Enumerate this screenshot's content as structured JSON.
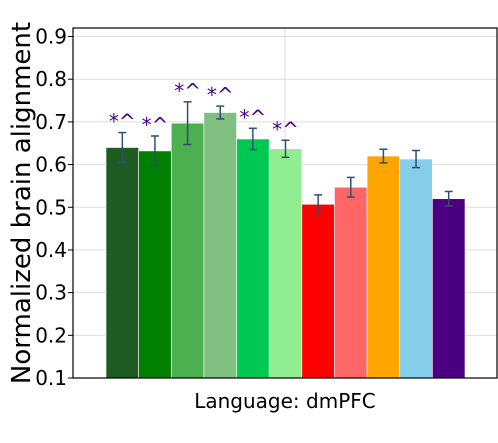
{
  "chart_data": {
    "type": "bar",
    "xlabel": "Language: dmPFC",
    "ylabel": "Normalized brain alignment",
    "ylim": [
      0.1,
      0.92
    ],
    "yticks": [
      "0.1",
      "0.2",
      "0.3",
      "0.4",
      "0.5",
      "0.6",
      "0.7",
      "0.8",
      "0.9"
    ],
    "grid": true,
    "bars": [
      {
        "value": 0.64,
        "err": 0.035,
        "color": "#1e5c24",
        "annotation": "*^"
      },
      {
        "value": 0.632,
        "err": 0.035,
        "color": "#008000",
        "annotation": "*^"
      },
      {
        "value": 0.697,
        "err": 0.05,
        "color": "#4caf50",
        "annotation": "*^"
      },
      {
        "value": 0.722,
        "err": 0.015,
        "color": "#7fbf7f",
        "annotation": "*^"
      },
      {
        "value": 0.66,
        "err": 0.025,
        "color": "#00c853",
        "annotation": "*^"
      },
      {
        "value": 0.637,
        "err": 0.02,
        "color": "#90ee90",
        "annotation": "*^"
      },
      {
        "value": 0.507,
        "err": 0.022,
        "color": "#ff0000",
        "annotation": ""
      },
      {
        "value": 0.547,
        "err": 0.023,
        "color": "#ff6666",
        "annotation": ""
      },
      {
        "value": 0.62,
        "err": 0.016,
        "color": "#ffa500",
        "annotation": ""
      },
      {
        "value": 0.613,
        "err": 0.02,
        "color": "#87ceeb",
        "annotation": ""
      },
      {
        "value": 0.52,
        "err": 0.017,
        "color": "#4b0082",
        "annotation": ""
      }
    ],
    "annotation_color": "#4b0082",
    "errorbar_color": "#2f4f6f"
  }
}
